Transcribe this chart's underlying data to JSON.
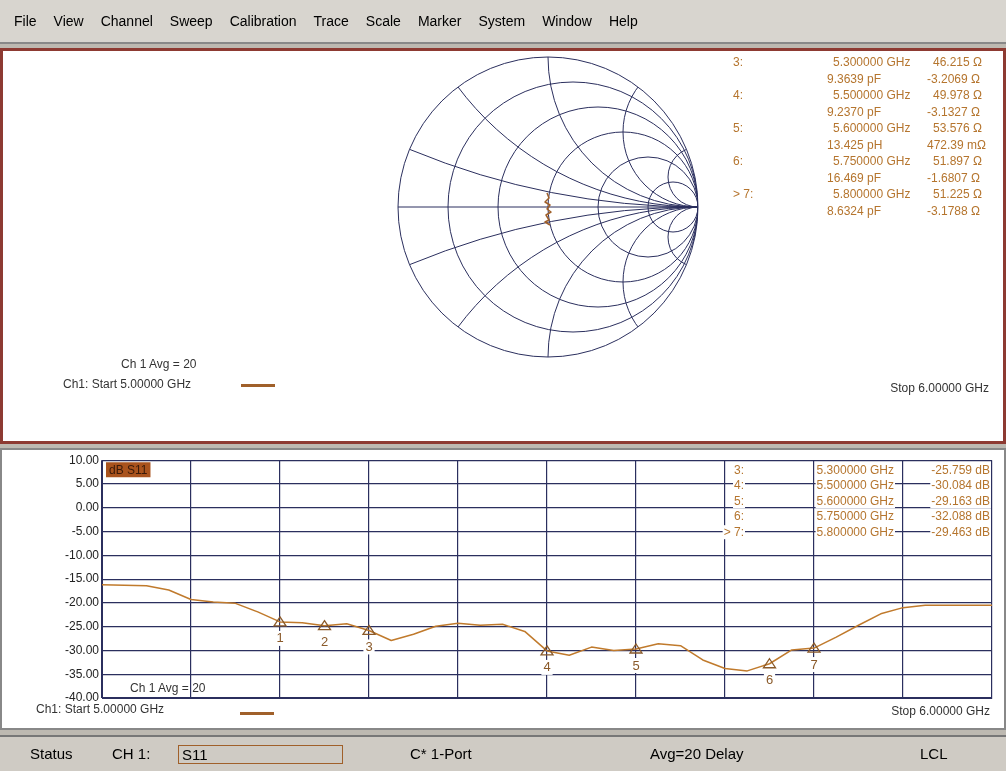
{
  "chart_data": [
    {
      "type": "other",
      "annotations": [
        "File",
        "View",
        "Channel",
        "Sweep",
        "Calibration",
        "Trace",
        "Scale",
        "Marker",
        "System",
        "Window",
        "Help"
      ]
    },
    {
      "type": "other",
      "annotations": [
        "Ch 1 Avg = 20",
        "Ch1: Start 5.00000 GHz",
        "Stop 6.00000 GHz",
        "3:\t5.300000 GHz\t46.215 Ω",
        "\t9.3639 pF\t-3.2069 Ω",
        "4:\t5.500000 GHz\t49.978 Ω",
        "\t9.2370 pF\t-3.1327 Ω",
        "5:\t5.600000 GHz\t53.576 Ω",
        "\t13.425 pH\t472.39 mΩ",
        "6:\t5.750000 GHz\t51.897 Ω",
        "\t16.469 pF\t-1.6807 Ω",
        "> 7:\t5.800000 GHz\t51.225 Ω",
        "\t8.6324 pF\t-3.1788 Ω"
      ]
    },
    {
      "type": "line",
      "categories": [
        null,
        null,
        null,
        null,
        null,
        null,
        null,
        null,
        null,
        null,
        null,
        null,
        null,
        null,
        null,
        null,
        null,
        null,
        null,
        null,
        null,
        null,
        null,
        null,
        null,
        null,
        null,
        null,
        null,
        null,
        null,
        null,
        null,
        null,
        null,
        null,
        null,
        null,
        null,
        null,
        null
      ],
      "ylim": [
        -40,
        10
      ],
      "yticks": [
        {
          "value": 10,
          "label": "10.00"
        },
        {
          "value": 5,
          "label": "5.00"
        },
        {
          "value": 0,
          "label": "0.00"
        },
        {
          "value": -5,
          "label": "-5.00"
        },
        {
          "value": -10,
          "label": "-10.00"
        },
        {
          "value": -15,
          "label": "-15.00"
        },
        {
          "value": -20,
          "label": "-20.00"
        },
        {
          "value": -25,
          "label": "-25.00"
        },
        {
          "value": -30,
          "label": "-30.00"
        },
        {
          "value": -35,
          "label": "-35.00"
        },
        {
          "value": -40,
          "label": "-40.00"
        }
      ],
      "grid": true,
      "legend": false,
      "tick_labels": "y",
      "line_style": "solid",
      "series": [
        {
          "type": "line",
          "color": "#c07a2c",
          "marker": "none",
          "values": [
            -16.2,
            -16.3,
            -16.4,
            -17.3,
            -19.3,
            -19.8,
            -20.1,
            -21.9,
            -24.0,
            -24.2,
            -24.8,
            -24.4,
            -25.8,
            -27.9,
            -26.6,
            -24.9,
            -24.3,
            -24.7,
            -24.5,
            -26.0,
            -30.1,
            -31.0,
            -29.3,
            -30.0,
            -29.7,
            -28.6,
            -29.0,
            -32.0,
            -33.8,
            -34.3,
            -32.8,
            -29.9,
            -29.5,
            -27.2,
            -24.7,
            -22.3,
            -21.0,
            -20.5,
            -20.5,
            -20.5,
            -20.5
          ]
        }
      ],
      "annotations": [
        "dB S11",
        "Ch 1 Avg = 20",
        "Ch1: Start 5.00000 GHz",
        "Stop 6.00000 GHz",
        "3:\t5.300000 GHz\t-25.759 dB",
        "4:\t5.500000 GHz\t-30.084 dB",
        "5:\t5.600000 GHz\t-29.163 dB",
        "6:\t5.750000 GHz\t-32.088 dB",
        "> 7:\t5.800000 GHz\t-29.463 dB",
        {
          "text": "1",
          "y": -24.0
        },
        {
          "text": "2",
          "y": -24.8
        },
        {
          "text": "3",
          "y": -25.8
        },
        {
          "text": "4",
          "y": -30.1
        },
        {
          "text": "5",
          "y": -29.7
        },
        {
          "text": "6",
          "y": -32.8
        },
        {
          "text": "7",
          "y": -29.5
        }
      ]
    },
    {
      "type": "other",
      "annotations": [
        "Status",
        "CH 1:",
        "S11",
        "C* 1-Port",
        "Avg=20 Delay",
        "LCL"
      ]
    }
  ]
}
